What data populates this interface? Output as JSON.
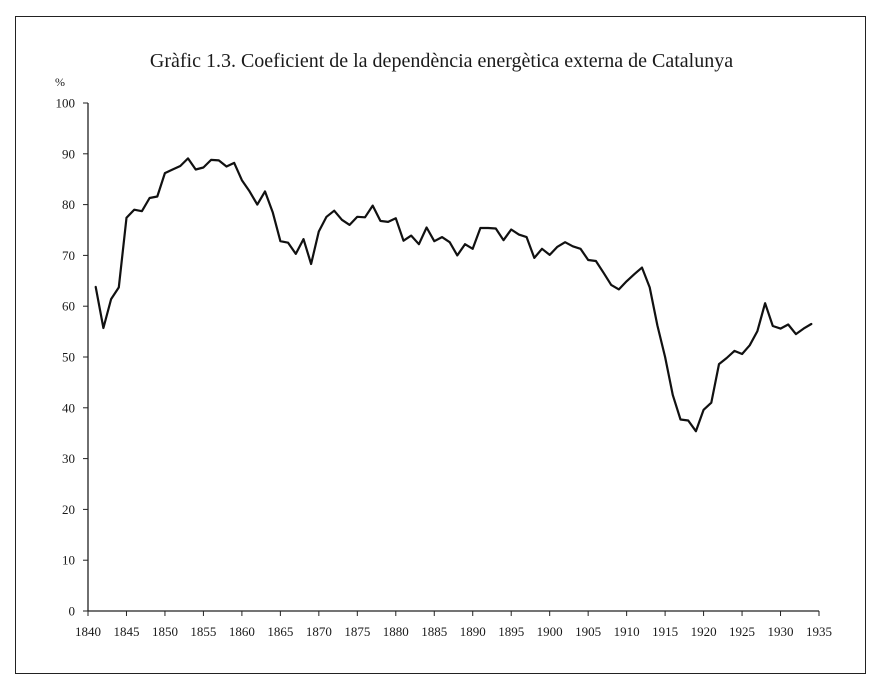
{
  "chart_data": {
    "type": "line",
    "title": "Gràfic 1.3. Coeficient de la dependència energètica externa de Catalunya",
    "ylabel": "%",
    "xlabel": "",
    "xlim": [
      1840,
      1935
    ],
    "ylim": [
      0,
      100
    ],
    "x_ticks": [
      1840,
      1845,
      1850,
      1855,
      1860,
      1865,
      1870,
      1875,
      1880,
      1885,
      1890,
      1895,
      1900,
      1905,
      1910,
      1915,
      1920,
      1925,
      1930,
      1935
    ],
    "y_ticks": [
      0,
      10,
      20,
      30,
      40,
      50,
      60,
      70,
      80,
      90,
      100
    ],
    "grid": false,
    "series": [
      {
        "name": "",
        "x": [
          1841,
          1842,
          1843,
          1844,
          1845,
          1846,
          1847,
          1848,
          1849,
          1850,
          1851,
          1852,
          1853,
          1854,
          1855,
          1856,
          1857,
          1858,
          1859,
          1860,
          1861,
          1862,
          1863,
          1864,
          1865,
          1866,
          1867,
          1868,
          1869,
          1870,
          1871,
          1872,
          1873,
          1874,
          1875,
          1876,
          1877,
          1878,
          1879,
          1880,
          1881,
          1882,
          1883,
          1884,
          1885,
          1886,
          1887,
          1888,
          1889,
          1890,
          1891,
          1892,
          1893,
          1894,
          1895,
          1896,
          1897,
          1898,
          1899,
          1900,
          1901,
          1902,
          1903,
          1904,
          1905,
          1906,
          1907,
          1908,
          1909,
          1910,
          1911,
          1912,
          1913,
          1914,
          1915,
          1916,
          1917,
          1918,
          1919,
          1920,
          1921,
          1922,
          1923,
          1924,
          1925,
          1926,
          1927,
          1928,
          1929,
          1930,
          1931,
          1932,
          1933,
          1934
        ],
        "y": [
          63.8,
          55.7,
          61.4,
          63.7,
          77.4,
          79.0,
          78.7,
          81.3,
          81.6,
          86.2,
          86.9,
          87.6,
          89.1,
          86.9,
          87.3,
          88.8,
          88.7,
          87.5,
          88.2,
          84.8,
          82.6,
          80.0,
          82.6,
          78.5,
          72.8,
          72.5,
          70.3,
          73.2,
          68.3,
          74.7,
          77.6,
          78.8,
          77.0,
          76.0,
          77.6,
          77.5,
          79.8,
          76.8,
          76.6,
          77.3,
          72.9,
          73.9,
          72.2,
          75.5,
          72.8,
          73.6,
          72.6,
          70.0,
          72.2,
          71.3,
          75.4,
          75.4,
          75.3,
          73.0,
          75.1,
          74.1,
          73.6,
          69.5,
          71.3,
          70.1,
          71.7,
          72.6,
          71.8,
          71.3,
          69.1,
          68.9,
          66.6,
          64.2,
          63.3,
          64.9,
          66.3,
          67.6,
          63.7,
          56.2,
          50.0,
          42.5,
          37.7,
          37.5,
          35.4,
          39.6,
          41.0,
          48.6,
          49.8,
          51.2,
          50.6,
          52.3,
          55.1,
          60.6,
          56.1,
          55.6,
          56.4,
          54.5,
          55.6,
          56.5
        ]
      }
    ]
  }
}
